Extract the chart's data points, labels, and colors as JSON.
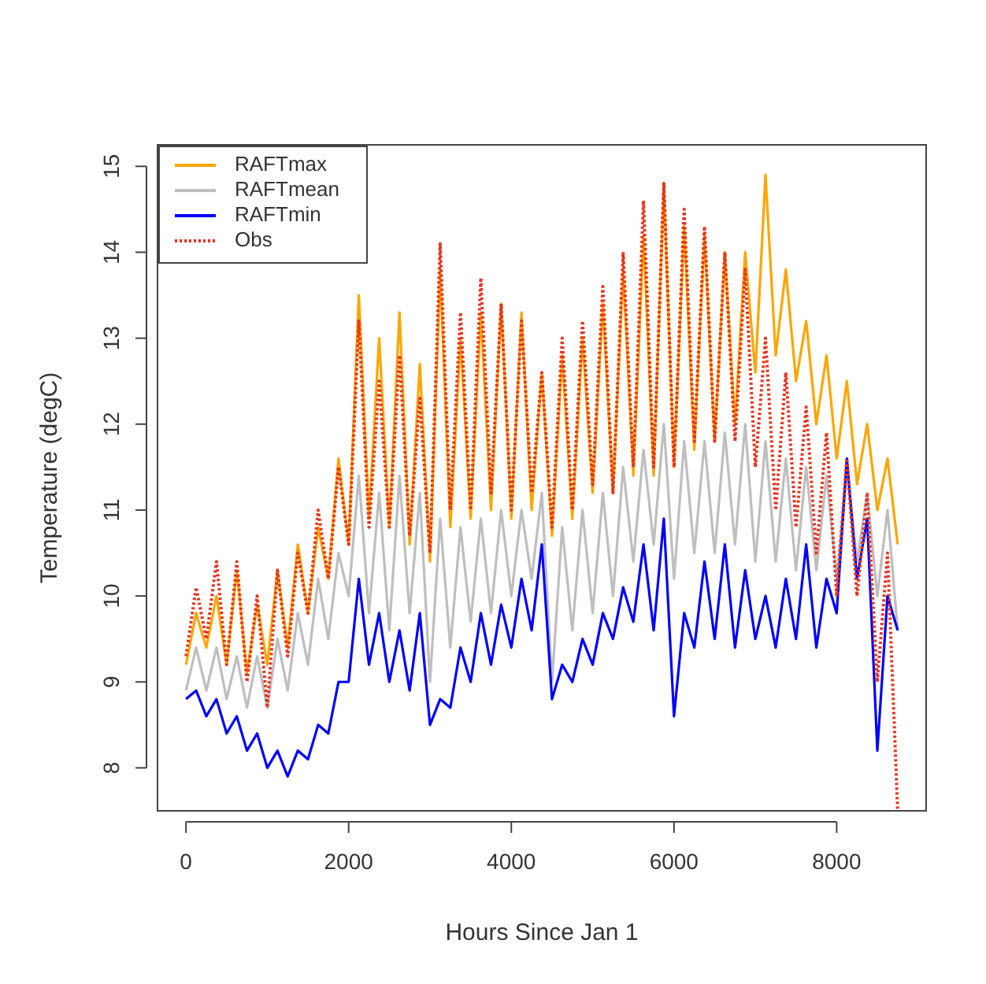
{
  "chart_data": {
    "type": "line",
    "xlabel": "Hours Since Jan 1",
    "ylabel": "Temperature (degC)",
    "x": [
      0,
      125,
      250,
      375,
      500,
      625,
      750,
      875,
      1000,
      1125,
      1250,
      1375,
      1500,
      1625,
      1750,
      1875,
      2000,
      2125,
      2250,
      2375,
      2500,
      2625,
      2750,
      2875,
      3000,
      3125,
      3250,
      3375,
      3500,
      3625,
      3750,
      3875,
      4000,
      4125,
      4250,
      4375,
      4500,
      4625,
      4750,
      4875,
      5000,
      5125,
      5250,
      5375,
      5500,
      5625,
      5750,
      5875,
      6000,
      6125,
      6250,
      6375,
      6500,
      6625,
      6750,
      6875,
      7000,
      7125,
      7250,
      7375,
      7500,
      7625,
      7750,
      7875,
      8000,
      8125,
      8250,
      8375,
      8500,
      8625,
      8750
    ],
    "series": [
      {
        "name": "RAFTmax",
        "color": "#ffa500",
        "line_style": "solid",
        "values": [
          9.2,
          9.8,
          9.4,
          10.0,
          9.2,
          10.3,
          9.1,
          9.9,
          9.2,
          10.3,
          9.4,
          10.6,
          9.8,
          10.8,
          10.2,
          11.6,
          10.6,
          13.5,
          10.9,
          13.0,
          10.8,
          13.3,
          10.6,
          12.7,
          10.4,
          13.8,
          10.8,
          13.0,
          10.9,
          13.3,
          11.0,
          13.4,
          10.9,
          13.3,
          11.0,
          12.6,
          10.7,
          12.8,
          10.9,
          13.0,
          11.2,
          13.4,
          11.2,
          13.8,
          11.4,
          14.2,
          11.4,
          14.8,
          11.5,
          14.3,
          11.7,
          14.2,
          11.8,
          14.0,
          12.0,
          14.0,
          12.6,
          14.9,
          12.8,
          13.8,
          12.5,
          13.2,
          12.0,
          12.8,
          11.6,
          12.5,
          11.3,
          12.0,
          11.0,
          11.6,
          10.6
        ]
      },
      {
        "name": "RAFTmean",
        "color": "#bebebe",
        "line_style": "solid",
        "values": [
          8.9,
          9.4,
          8.9,
          9.4,
          8.8,
          9.3,
          8.7,
          9.3,
          8.7,
          9.5,
          8.9,
          9.8,
          9.2,
          10.2,
          9.5,
          10.5,
          10.0,
          11.4,
          9.8,
          11.2,
          9.6,
          11.4,
          9.8,
          11.2,
          9.0,
          10.9,
          9.4,
          10.8,
          9.7,
          10.9,
          9.8,
          11.0,
          10.0,
          11.0,
          10.2,
          11.2,
          9.0,
          10.8,
          9.6,
          11.0,
          9.8,
          11.2,
          10.0,
          11.5,
          10.4,
          11.7,
          10.6,
          12.0,
          10.2,
          11.8,
          10.5,
          11.8,
          10.5,
          11.9,
          10.6,
          12.0,
          10.4,
          11.8,
          10.4,
          11.6,
          10.3,
          11.5,
          10.3,
          11.4,
          10.2,
          11.5,
          10.4,
          11.2,
          10.0,
          11.0,
          9.6
        ]
      },
      {
        "name": "RAFTmin",
        "color": "#0000ff",
        "line_style": "solid",
        "values": [
          8.8,
          8.9,
          8.6,
          8.8,
          8.4,
          8.6,
          8.2,
          8.4,
          8.0,
          8.2,
          7.9,
          8.2,
          8.1,
          8.5,
          8.4,
          9.0,
          9.0,
          10.2,
          9.2,
          9.8,
          9.0,
          9.6,
          8.9,
          9.8,
          8.5,
          8.8,
          8.7,
          9.4,
          9.0,
          9.8,
          9.2,
          9.9,
          9.4,
          10.2,
          9.6,
          10.6,
          8.8,
          9.2,
          9.0,
          9.5,
          9.2,
          9.8,
          9.5,
          10.1,
          9.7,
          10.6,
          9.6,
          10.9,
          8.6,
          9.8,
          9.4,
          10.4,
          9.5,
          10.6,
          9.4,
          10.3,
          9.5,
          10.0,
          9.4,
          10.2,
          9.5,
          10.6,
          9.4,
          10.2,
          9.8,
          11.6,
          10.2,
          10.9,
          8.2,
          10.0,
          9.6
        ]
      },
      {
        "name": "Obs",
        "color": "#e8321e",
        "line_style": "dotted",
        "values": [
          9.3,
          10.1,
          9.5,
          10.4,
          9.2,
          10.4,
          9.0,
          10.0,
          8.7,
          10.3,
          9.3,
          10.5,
          9.8,
          11.0,
          10.2,
          11.5,
          10.6,
          13.2,
          10.8,
          12.5,
          10.8,
          12.8,
          10.7,
          12.3,
          10.5,
          14.1,
          11.0,
          13.3,
          11.0,
          13.7,
          11.2,
          13.4,
          11.0,
          13.2,
          11.2,
          12.6,
          10.8,
          13.0,
          11.0,
          13.2,
          11.3,
          13.6,
          11.2,
          14.0,
          11.5,
          14.6,
          11.5,
          14.8,
          11.5,
          14.5,
          11.8,
          14.3,
          11.8,
          14.0,
          11.8,
          13.8,
          11.5,
          13.0,
          11.0,
          12.6,
          10.8,
          12.2,
          10.5,
          11.9,
          10.0,
          11.6,
          10.0,
          11.2,
          9.0,
          10.5,
          7.5
        ]
      }
    ],
    "xlim": [
      -350,
      9100
    ],
    "xticks": [
      0,
      2000,
      4000,
      6000,
      8000
    ],
    "ylim": [
      7.5,
      15.25
    ],
    "yticks": [
      8,
      9,
      10,
      11,
      12,
      13,
      14,
      15
    ],
    "grid": false,
    "legend": "top left",
    "marker": "none"
  }
}
